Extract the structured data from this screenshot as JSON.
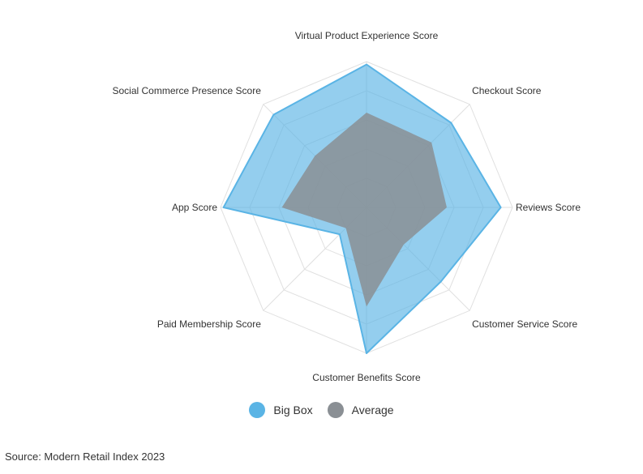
{
  "chart_data": {
    "type": "radar",
    "categories": [
      "Virtual Product Experience Score",
      "Checkout Score",
      "Reviews Score",
      "Customer Service Score",
      "Customer Benefits Score",
      "Paid Membership Score",
      "App Score",
      "Social Commerce Presence Score"
    ],
    "series": [
      {
        "name": "Big Box",
        "color": "#5ab4e5",
        "values": [
          0.98,
          0.82,
          0.92,
          0.72,
          1.0,
          0.26,
          0.98,
          0.9
        ]
      },
      {
        "name": "Average",
        "color": "#8a8f94",
        "values": [
          0.65,
          0.63,
          0.55,
          0.36,
          0.68,
          0.2,
          0.58,
          0.5
        ]
      }
    ],
    "rlim": [
      0,
      1
    ],
    "grid": true,
    "legend_position": "bottom"
  },
  "source": "Source: Modern Retail Index 2023"
}
